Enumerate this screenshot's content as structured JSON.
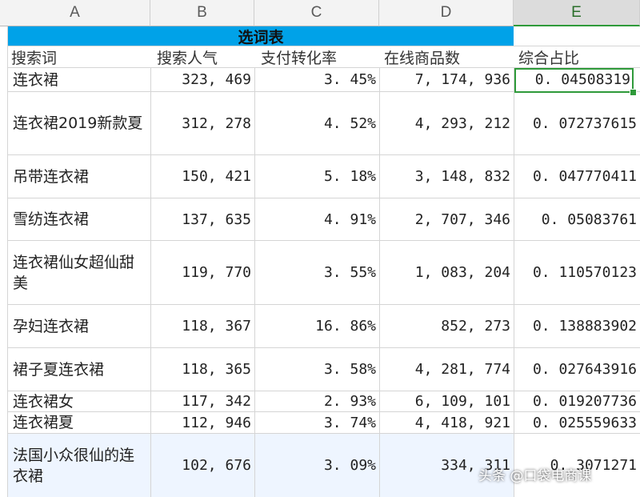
{
  "column_headers": [
    "A",
    "B",
    "C",
    "D",
    "E"
  ],
  "selected_column": "E",
  "title": "选词表",
  "field_headers": [
    "搜索词",
    "搜索人气",
    "支付转化率",
    "在线商品数",
    "综合占比"
  ],
  "rows": [
    {
      "keyword": "连衣裙",
      "popularity": "323, 469",
      "conversion": "3. 45%",
      "products": "7, 174, 936",
      "ratio": "0. 04508319"
    },
    {
      "keyword": "连衣裙2019新款夏",
      "popularity": "312, 278",
      "conversion": "4. 52%",
      "products": "4, 293, 212",
      "ratio": "0. 072737615"
    },
    {
      "keyword": "吊带连衣裙",
      "popularity": "150, 421",
      "conversion": "5. 18%",
      "products": "3, 148, 832",
      "ratio": "0. 047770411"
    },
    {
      "keyword": "雪纺连衣裙",
      "popularity": "137, 635",
      "conversion": "4. 91%",
      "products": "2, 707, 346",
      "ratio": "0. 05083761"
    },
    {
      "keyword": "连衣裙仙女超仙甜美",
      "popularity": "119, 770",
      "conversion": "3. 55%",
      "products": "1, 083, 204",
      "ratio": "0. 110570123"
    },
    {
      "keyword": "孕妇连衣裙",
      "popularity": "118, 367",
      "conversion": "16. 86%",
      "products": "852, 273",
      "ratio": "0. 138883902"
    },
    {
      "keyword": "裙子夏连衣裙",
      "popularity": "118, 365",
      "conversion": "3. 58%",
      "products": "4, 281, 774",
      "ratio": "0. 027643916"
    },
    {
      "keyword": "连衣裙女",
      "popularity": "117, 342",
      "conversion": "2. 93%",
      "products": "6, 109, 101",
      "ratio": "0. 019207736"
    },
    {
      "keyword": "连衣裙夏",
      "popularity": "112, 946",
      "conversion": "3. 74%",
      "products": "4, 418, 921",
      "ratio": "0. 025559633"
    },
    {
      "keyword": "法国小众很仙的连衣裙",
      "popularity": "102, 676",
      "conversion": "3. 09%",
      "products": "334, 311",
      "ratio": "0. 3071271"
    }
  ],
  "watermark": "头条 @口袋电商课",
  "colors": {
    "title_band": "#00a2e8",
    "selection": "#2f9a3a"
  }
}
